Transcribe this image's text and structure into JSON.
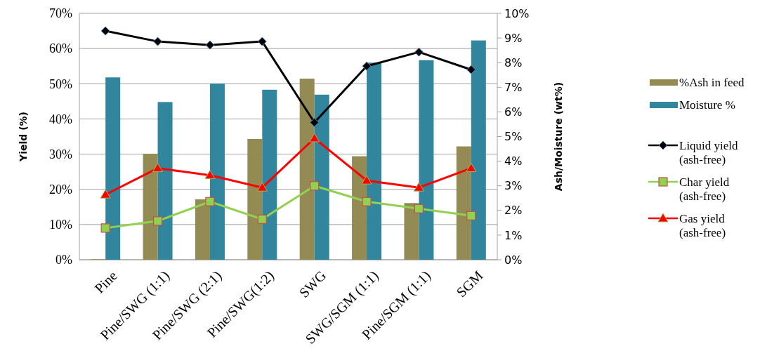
{
  "chart_data": {
    "type": "bar",
    "ylabel": "Yield (%)",
    "y2label": "Ash/Moisture (wt%)",
    "categories": [
      "Pine",
      "Pine/SWG (1:1)",
      "Pine/SWG (2:1)",
      "Pine/SWG(1:2)",
      "SWG",
      "SWG/SGM (1:1)",
      "Pine/SGM (1:1)",
      "SGM"
    ],
    "series": [
      {
        "name": "%Ash in feed",
        "axis": "y2",
        "color": "#948a54",
        "values": [
          0.02,
          4.3,
          2.45,
          4.9,
          7.35,
          4.2,
          2.3,
          4.6
        ]
      },
      {
        "name": "Moisture %",
        "axis": "y2",
        "color": "#31859c",
        "values": [
          7.4,
          6.4,
          7.15,
          6.9,
          6.7,
          8.0,
          8.1,
          8.9
        ]
      },
      {
        "name": "Liquid yield (ash-free)",
        "type": "line",
        "color": "#000000",
        "marker": "diamond",
        "values": [
          65,
          62,
          61,
          62,
          39,
          55,
          59,
          54
        ]
      },
      {
        "name": "Char yield (ash-free)",
        "type": "line",
        "color": "#92d050",
        "marker": "square",
        "values": [
          9,
          11,
          16.5,
          11.5,
          21,
          16.5,
          14.5,
          12.5
        ]
      },
      {
        "name": "Gas yield (ash-free)",
        "type": "line",
        "color": "#ff0000",
        "marker": "triangle",
        "values": [
          18.5,
          26,
          24,
          20.5,
          34.5,
          22.5,
          20.5,
          26
        ]
      }
    ],
    "ylim": [
      0,
      70
    ],
    "yticks": [
      {
        "value": 0,
        "label": "0%"
      },
      {
        "value": 10,
        "label": "10%"
      },
      {
        "value": 20,
        "label": "20%"
      },
      {
        "value": 30,
        "label": "30%"
      },
      {
        "value": 40,
        "label": "40%"
      },
      {
        "value": 50,
        "label": "50%"
      },
      {
        "value": 60,
        "label": "60%"
      },
      {
        "value": 70,
        "label": "70%"
      }
    ],
    "y2lim": [
      0,
      10
    ],
    "y2ticks": [
      {
        "value": 0,
        "label": "0%"
      },
      {
        "value": 1,
        "label": "1%"
      },
      {
        "value": 2,
        "label": "2%"
      },
      {
        "value": 3,
        "label": "3%"
      },
      {
        "value": 4,
        "label": "4%"
      },
      {
        "value": 5,
        "label": "5%"
      },
      {
        "value": 6,
        "label": "6%"
      },
      {
        "value": 7,
        "label": "7%"
      },
      {
        "value": 8,
        "label": "8%"
      },
      {
        "value": 9,
        "label": "9%"
      },
      {
        "value": 10,
        "label": "10%"
      }
    ],
    "grid": "y",
    "legend": "right"
  }
}
